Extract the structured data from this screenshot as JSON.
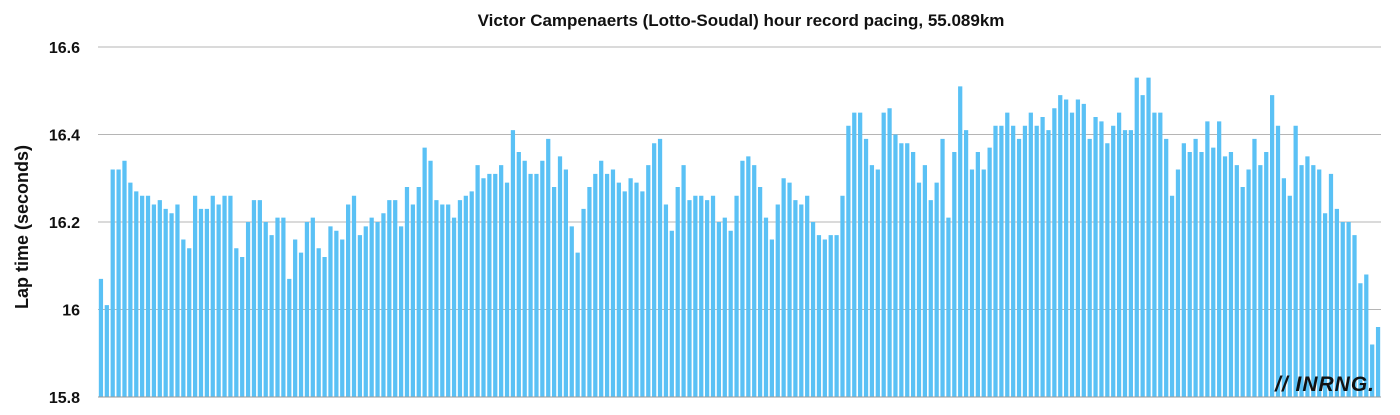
{
  "chart_data": {
    "type": "bar",
    "title": "Victor Campenaerts (Lotto-Soudal) hour record pacing, 55.089km",
    "xlabel": "",
    "ylabel": "Lap time (seconds)",
    "ylim": [
      15.8,
      16.6
    ],
    "yticks": [
      {
        "value": 15.8,
        "label": "15.8"
      },
      {
        "value": 16,
        "label": "16"
      },
      {
        "value": 16.2,
        "label": "16.2"
      },
      {
        "value": 16.4,
        "label": "16.4"
      },
      {
        "value": 16.6,
        "label": "16.6"
      }
    ],
    "grid": true,
    "bar_color": "#5ac1f5",
    "values": [
      16.07,
      16.01,
      16.32,
      16.32,
      16.34,
      16.29,
      16.27,
      16.26,
      16.26,
      16.24,
      16.25,
      16.23,
      16.22,
      16.24,
      16.16,
      16.14,
      16.26,
      16.23,
      16.23,
      16.26,
      16.24,
      16.26,
      16.26,
      16.14,
      16.12,
      16.2,
      16.25,
      16.25,
      16.2,
      16.17,
      16.21,
      16.21,
      16.07,
      16.16,
      16.13,
      16.2,
      16.21,
      16.14,
      16.12,
      16.19,
      16.18,
      16.16,
      16.24,
      16.26,
      16.17,
      16.19,
      16.21,
      16.2,
      16.22,
      16.25,
      16.25,
      16.19,
      16.28,
      16.24,
      16.28,
      16.37,
      16.34,
      16.25,
      16.24,
      16.24,
      16.21,
      16.25,
      16.26,
      16.27,
      16.33,
      16.3,
      16.31,
      16.31,
      16.33,
      16.29,
      16.41,
      16.36,
      16.34,
      16.31,
      16.31,
      16.34,
      16.39,
      16.28,
      16.35,
      16.32,
      16.19,
      16.13,
      16.23,
      16.28,
      16.31,
      16.34,
      16.31,
      16.32,
      16.29,
      16.27,
      16.3,
      16.29,
      16.27,
      16.33,
      16.38,
      16.39,
      16.24,
      16.18,
      16.28,
      16.33,
      16.25,
      16.26,
      16.26,
      16.25,
      16.26,
      16.2,
      16.21,
      16.18,
      16.26,
      16.34,
      16.35,
      16.33,
      16.28,
      16.21,
      16.16,
      16.24,
      16.3,
      16.29,
      16.25,
      16.24,
      16.26,
      16.2,
      16.17,
      16.16,
      16.17,
      16.17,
      16.26,
      16.42,
      16.45,
      16.45,
      16.39,
      16.33,
      16.32,
      16.45,
      16.46,
      16.4,
      16.38,
      16.38,
      16.36,
      16.29,
      16.33,
      16.25,
      16.29,
      16.39,
      16.21,
      16.36,
      16.51,
      16.41,
      16.32,
      16.36,
      16.32,
      16.37,
      16.42,
      16.42,
      16.45,
      16.42,
      16.39,
      16.42,
      16.45,
      16.42,
      16.44,
      16.41,
      16.46,
      16.49,
      16.48,
      16.45,
      16.48,
      16.47,
      16.39,
      16.44,
      16.43,
      16.38,
      16.42,
      16.45,
      16.41,
      16.41,
      16.53,
      16.49,
      16.53,
      16.45,
      16.45,
      16.39,
      16.26,
      16.32,
      16.38,
      16.36,
      16.39,
      16.36,
      16.43,
      16.37,
      16.43,
      16.35,
      16.36,
      16.33,
      16.28,
      16.32,
      16.39,
      16.33,
      16.36,
      16.49,
      16.42,
      16.3,
      16.26,
      16.42,
      16.33,
      16.35,
      16.33,
      16.32,
      16.22,
      16.31,
      16.23,
      16.2,
      16.2,
      16.17,
      16.06,
      16.08,
      15.92,
      15.96
    ]
  },
  "watermark": {
    "text": "// INRNG."
  }
}
